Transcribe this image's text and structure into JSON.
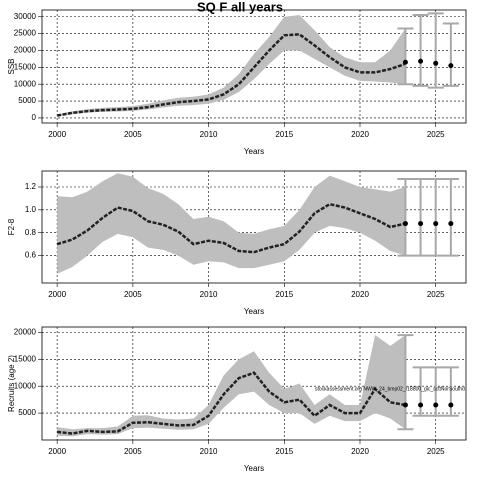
{
  "chart_data": [
    {
      "type": "line",
      "title": "SQ F all years",
      "xlabel": "Years",
      "ylabel": "SSB",
      "x": [
        2000,
        2001,
        2002,
        2003,
        2004,
        2005,
        2006,
        2007,
        2008,
        2009,
        2010,
        2011,
        2012,
        2013,
        2014,
        2015,
        2016,
        2017,
        2018,
        2019,
        2020,
        2021,
        2022,
        2023
      ],
      "median": [
        700,
        1500,
        2000,
        2300,
        2500,
        2700,
        3200,
        4000,
        4700,
        5000,
        5500,
        7000,
        10000,
        15000,
        20000,
        24500,
        24800,
        21500,
        18000,
        15000,
        13500,
        13500,
        14500,
        16000
      ],
      "upper": [
        1000,
        2000,
        2600,
        3000,
        3200,
        3500,
        4200,
        5200,
        6000,
        6300,
        7000,
        9000,
        13000,
        19000,
        24000,
        30000,
        30500,
        26000,
        21000,
        18000,
        16500,
        16500,
        20000,
        26500
      ],
      "lower": [
        500,
        1100,
        1600,
        1800,
        1900,
        2100,
        2500,
        3100,
        3600,
        3800,
        4200,
        5400,
        7700,
        11500,
        16000,
        20000,
        20000,
        17500,
        15000,
        12500,
        11000,
        10800,
        10500,
        10000
      ],
      "forecast": {
        "x": [
          2023,
          2024,
          2025,
          2026
        ],
        "values": [
          16500,
          16800,
          16200,
          15500
        ],
        "lower": [
          10000,
          9500,
          9000,
          9500
        ],
        "upper": [
          26500,
          30500,
          31000,
          28000
        ]
      },
      "xlim": [
        1999,
        2027
      ],
      "xticks": [
        2000,
        2005,
        2010,
        2015,
        2020,
        2025
      ],
      "ylim": [
        -1500,
        32000
      ],
      "yticks": [
        0,
        5000,
        10000,
        15000,
        20000,
        25000,
        30000
      ],
      "grid": true,
      "color": "#222222",
      "band_color": "#bebebe",
      "bar_color": "#a8a8a8"
    },
    {
      "type": "line",
      "xlabel": "Years",
      "ylabel": "F2-8",
      "x": [
        2000,
        2001,
        2002,
        2003,
        2004,
        2005,
        2006,
        2007,
        2008,
        2009,
        2010,
        2011,
        2012,
        2013,
        2014,
        2015,
        2016,
        2017,
        2018,
        2019,
        2020,
        2021,
        2022,
        2023
      ],
      "median": [
        0.7,
        0.74,
        0.82,
        0.93,
        1.02,
        0.99,
        0.9,
        0.87,
        0.81,
        0.7,
        0.73,
        0.71,
        0.64,
        0.63,
        0.67,
        0.7,
        0.81,
        0.97,
        1.05,
        1.02,
        0.97,
        0.92,
        0.85,
        0.88
      ],
      "upper": [
        1.12,
        1.11,
        1.16,
        1.25,
        1.32,
        1.29,
        1.19,
        1.14,
        1.05,
        0.92,
        0.94,
        0.9,
        0.8,
        0.79,
        0.83,
        0.86,
        1.0,
        1.2,
        1.3,
        1.25,
        1.2,
        1.18,
        1.16,
        1.2
      ],
      "lower": [
        0.44,
        0.5,
        0.6,
        0.72,
        0.79,
        0.76,
        0.67,
        0.65,
        0.6,
        0.52,
        0.55,
        0.54,
        0.49,
        0.49,
        0.52,
        0.55,
        0.65,
        0.8,
        0.86,
        0.84,
        0.8,
        0.73,
        0.64,
        0.6
      ],
      "forecast": {
        "x": [
          2023,
          2024,
          2025,
          2026
        ],
        "values": [
          0.88,
          0.88,
          0.88,
          0.88
        ],
        "lower": [
          0.6,
          0.6,
          0.6,
          0.6
        ],
        "upper": [
          1.27,
          1.27,
          1.27,
          1.27
        ]
      },
      "xlim": [
        1999,
        2027
      ],
      "xticks": [
        2000,
        2005,
        2010,
        2015,
        2020,
        2025
      ],
      "ylim": [
        0.36,
        1.34
      ],
      "yticks": [
        0.6,
        0.8,
        {
          "value": 1,
          "label": "1.0"
        },
        1.2
      ],
      "grid": true,
      "color": "#222222",
      "band_color": "#bebebe",
      "bar_color": "#a8a8a8"
    },
    {
      "type": "line",
      "xlabel": "Years",
      "ylabel": "Recruits (age 2)",
      "annotation": "stockassessment.org NWW_24_bmp02_r18800_gic_scttNorSouthd",
      "x": [
        2000,
        2001,
        2002,
        2003,
        2004,
        2005,
        2006,
        2007,
        2008,
        2009,
        2010,
        2011,
        2012,
        2013,
        2014,
        2015,
        2016,
        2017,
        2018,
        2019,
        2020,
        2021,
        2022,
        2023
      ],
      "median": [
        1500,
        1200,
        1700,
        1500,
        1600,
        3200,
        3300,
        3000,
        2700,
        2800,
        4500,
        8500,
        11500,
        12500,
        9000,
        7000,
        7500,
        4500,
        6500,
        5000,
        5000,
        9500,
        7000,
        6500
      ],
      "upper": [
        2400,
        2000,
        2200,
        2200,
        2500,
        4500,
        4600,
        4000,
        3800,
        4000,
        6500,
        12000,
        15000,
        16500,
        12500,
        9500,
        10500,
        6500,
        8500,
        6500,
        6500,
        19500,
        17500,
        19500
      ],
      "lower": [
        800,
        700,
        1100,
        1000,
        1100,
        2200,
        2300,
        2100,
        1900,
        2000,
        3000,
        6000,
        8500,
        9000,
        6500,
        5000,
        5000,
        3000,
        4500,
        3500,
        3500,
        5000,
        4000,
        2000
      ],
      "forecast": {
        "x": [
          2023,
          2024,
          2025,
          2026
        ],
        "values": [
          6500,
          6500,
          6500,
          6500
        ],
        "lower": [
          2000,
          4500,
          4500,
          4500
        ],
        "upper": [
          19500,
          13500,
          13500,
          13500
        ]
      },
      "xlim": [
        1999,
        2027
      ],
      "xticks": [
        2000,
        2005,
        2010,
        2015,
        2020,
        2025
      ],
      "ylim": [
        0,
        21000
      ],
      "yticks": [
        5000,
        10000,
        15000,
        20000
      ],
      "grid": true,
      "color": "#222222",
      "band_color": "#bebebe",
      "bar_color": "#a8a8a8"
    }
  ]
}
